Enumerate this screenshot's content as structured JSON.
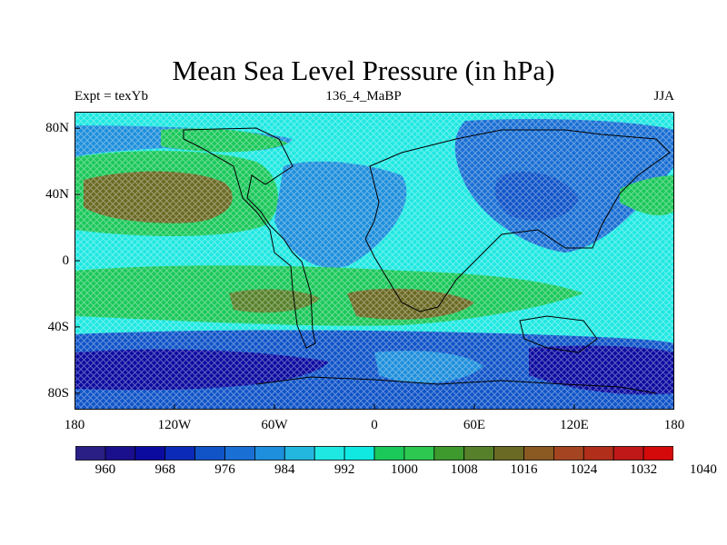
{
  "title": "Mean Sea Level Pressure (in hPa)",
  "subtitle_left": "Expt = texYb",
  "subtitle_center": "136_4_MaBP",
  "subtitle_right": "JJA",
  "map": {
    "projection": "cylindrical equidistant",
    "lon_range": [
      -180,
      180
    ],
    "lat_range": [
      -90,
      90
    ],
    "x_ticks": [
      {
        "lon": -180,
        "label": "180"
      },
      {
        "lon": -120,
        "label": "120W"
      },
      {
        "lon": -60,
        "label": "60W"
      },
      {
        "lon": 0,
        "label": "0"
      },
      {
        "lon": 60,
        "label": "60E"
      },
      {
        "lon": 120,
        "label": "120E"
      },
      {
        "lon": 180,
        "label": "180"
      }
    ],
    "y_ticks": [
      {
        "lat": 80,
        "label": "80N"
      },
      {
        "lat": 40,
        "label": "40N"
      },
      {
        "lat": 0,
        "label": "0"
      },
      {
        "lat": -40,
        "label": "40S"
      },
      {
        "lat": -80,
        "label": "80S"
      }
    ]
  },
  "colorbar": {
    "colors": [
      "#2a1f84",
      "#1a0f8c",
      "#0c0ba0",
      "#0b2ab8",
      "#1054c8",
      "#1a6fd4",
      "#1e8fdc",
      "#23b7e0",
      "#1fe8e2",
      "#0fe9e2",
      "#1bc85a",
      "#2dc850",
      "#3e9a2c",
      "#56812a",
      "#6b6a24",
      "#8a5a22",
      "#a44420",
      "#b02e1a",
      "#c01818",
      "#d40a0a"
    ],
    "labels": [
      "960",
      "968",
      "976",
      "984",
      "992",
      "1000",
      "1008",
      "1016",
      "1024",
      "1032",
      "1040"
    ]
  }
}
